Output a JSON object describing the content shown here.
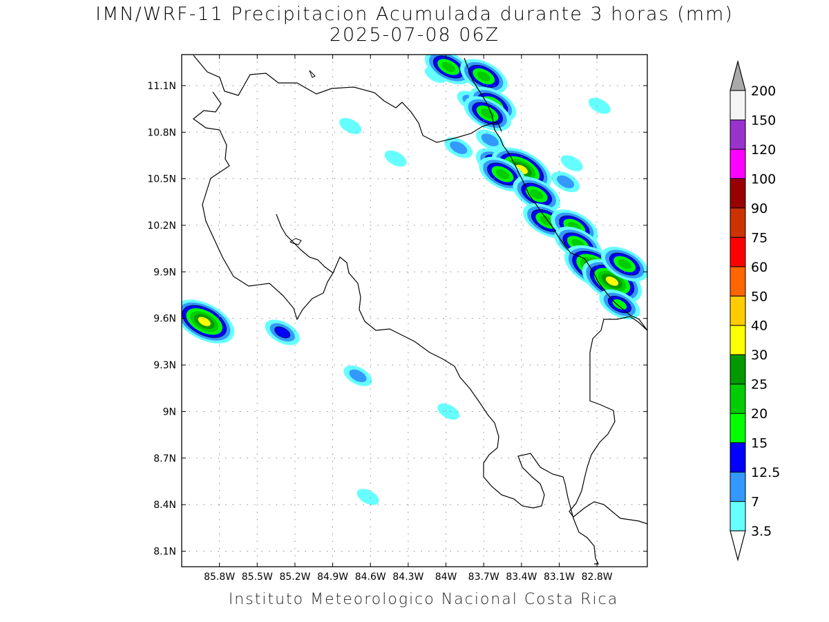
{
  "header": {
    "title": "IMN/WRF-11 Precipitacion Acumulada durante 3 horas (mm)",
    "subtitle": "2025-07-08 06Z"
  },
  "footer": {
    "credit": "Instituto Meteorologico Nacional Costa Rica"
  },
  "map": {
    "lon_range": [
      -86.1,
      -82.4
    ],
    "lat_range": [
      8.0,
      11.3
    ],
    "x_ticks": [
      {
        "value": -85.8,
        "label": "85.8W"
      },
      {
        "value": -85.5,
        "label": "85.5W"
      },
      {
        "value": -85.2,
        "label": "85.2W"
      },
      {
        "value": -84.9,
        "label": "84.9W"
      },
      {
        "value": -84.6,
        "label": "84.6W"
      },
      {
        "value": -84.3,
        "label": "84.3W"
      },
      {
        "value": -84.0,
        "label": "84W"
      },
      {
        "value": -83.7,
        "label": "83.7W"
      },
      {
        "value": -83.4,
        "label": "83.4W"
      },
      {
        "value": -83.1,
        "label": "83.1W"
      },
      {
        "value": -82.8,
        "label": "82.8W"
      }
    ],
    "y_ticks": [
      {
        "value": 8.1,
        "label": "8.1N"
      },
      {
        "value": 8.4,
        "label": "8.4N"
      },
      {
        "value": 8.7,
        "label": "8.7N"
      },
      {
        "value": 9.0,
        "label": "9N"
      },
      {
        "value": 9.3,
        "label": "9.3N"
      },
      {
        "value": 9.6,
        "label": "9.6N"
      },
      {
        "value": 9.9,
        "label": "9.9N"
      },
      {
        "value": 10.2,
        "label": "10.2N"
      },
      {
        "value": 10.5,
        "label": "10.5N"
      },
      {
        "value": 10.8,
        "label": "10.8N"
      },
      {
        "value": 11.1,
        "label": "11.1N"
      }
    ],
    "gridlines": "dotted",
    "coastline_color": "#000000"
  },
  "colorbar": {
    "units": "mm",
    "levels": [
      "3.5",
      "7",
      "12.5",
      "15",
      "20",
      "25",
      "30",
      "40",
      "50",
      "60",
      "75",
      "90",
      "100",
      "120",
      "150",
      "200"
    ],
    "colors": [
      "#66ffff",
      "#3399ff",
      "#0000ff",
      "#00ff00",
      "#00cc00",
      "#009900",
      "#ffff00",
      "#ffcc00",
      "#ff6600",
      "#ff0000",
      "#cc3300",
      "#990000",
      "#ff00ff",
      "#9933cc",
      "#f5f5f5"
    ],
    "under_color": "#ffffff",
    "over_color": "#aaaaaa"
  },
  "precip_cells": [
    {
      "lon": -85.92,
      "lat": 9.58,
      "max_mm": 32
    },
    {
      "lon": -85.3,
      "lat": 9.51,
      "max_mm": 14
    },
    {
      "lon": -84.7,
      "lat": 9.23,
      "max_mm": 10
    },
    {
      "lon": -83.98,
      "lat": 9.0,
      "max_mm": 5
    },
    {
      "lon": -84.62,
      "lat": 8.45,
      "max_mm": 5
    },
    {
      "lon": -84.08,
      "lat": 11.17,
      "max_mm": 5
    },
    {
      "lon": -83.98,
      "lat": 11.22,
      "max_mm": 22
    },
    {
      "lon": -83.7,
      "lat": 11.16,
      "max_mm": 20
    },
    {
      "lon": -83.8,
      "lat": 11.0,
      "max_mm": 8
    },
    {
      "lon": -83.63,
      "lat": 10.98,
      "max_mm": 20
    },
    {
      "lon": -83.67,
      "lat": 10.92,
      "max_mm": 20
    },
    {
      "lon": -83.65,
      "lat": 10.75,
      "max_mm": 12
    },
    {
      "lon": -83.9,
      "lat": 10.7,
      "max_mm": 7
    },
    {
      "lon": -83.6,
      "lat": 10.6,
      "max_mm": 15
    },
    {
      "lon": -83.4,
      "lat": 10.56,
      "max_mm": 30
    },
    {
      "lon": -83.55,
      "lat": 10.53,
      "max_mm": 20
    },
    {
      "lon": -83.33,
      "lat": 10.45,
      "max_mm": 12
    },
    {
      "lon": -83.28,
      "lat": 10.4,
      "max_mm": 20
    },
    {
      "lon": -83.05,
      "lat": 10.48,
      "max_mm": 12
    },
    {
      "lon": -83.0,
      "lat": 10.6,
      "max_mm": 5
    },
    {
      "lon": -83.2,
      "lat": 10.23,
      "max_mm": 20
    },
    {
      "lon": -82.98,
      "lat": 10.19,
      "max_mm": 20
    },
    {
      "lon": -82.95,
      "lat": 10.08,
      "max_mm": 22
    },
    {
      "lon": -82.82,
      "lat": 9.93,
      "max_mm": 32
    },
    {
      "lon": -82.68,
      "lat": 9.84,
      "max_mm": 30
    },
    {
      "lon": -82.58,
      "lat": 9.95,
      "max_mm": 20
    },
    {
      "lon": -82.62,
      "lat": 9.69,
      "max_mm": 15
    },
    {
      "lon": -84.4,
      "lat": 10.63,
      "max_mm": 5
    },
    {
      "lon": -82.78,
      "lat": 10.97,
      "max_mm": 5
    },
    {
      "lon": -84.76,
      "lat": 10.84,
      "max_mm": 5
    }
  ]
}
